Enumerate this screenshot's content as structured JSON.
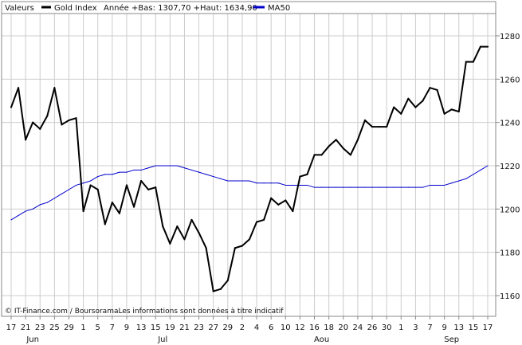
{
  "legend": {
    "values_label": "Valeurs",
    "series_label": "Gold Index",
    "range_text": "Année +Bas: 1307,70 +Haut: 1634,90",
    "ma_label": "MA50",
    "series_color": "#000000",
    "ma_color": "#0000cc"
  },
  "footer": {
    "copyright": "© IT-Finance.com / BoursoramaLes informations sont données à titre indicatif"
  },
  "chart_data": {
    "type": "line",
    "ylim": [
      1150,
      1300
    ],
    "yticks": [
      1160,
      1180,
      1200,
      1220,
      1240,
      1260,
      1280
    ],
    "y_axis_side": "right",
    "grid": true,
    "legend_position": "top-left",
    "x_tick_labels": [
      "17",
      "21",
      "23",
      "25",
      "29",
      "1",
      "5",
      "7",
      "9",
      "13",
      "15",
      "19",
      "21",
      "23",
      "27",
      "29",
      "2",
      "4",
      "6",
      "10",
      "12",
      "16",
      "18",
      "20",
      "24",
      "26",
      "30",
      "1",
      "3",
      "7",
      "9",
      "13",
      "15",
      "17"
    ],
    "month_labels": [
      {
        "label": "Jun",
        "after_tick": 1.5
      },
      {
        "label": "Jul",
        "after_tick": 10.5
      },
      {
        "label": "Aou",
        "after_tick": 21.5
      },
      {
        "label": "Sep",
        "after_tick": 30.5
      }
    ],
    "series": [
      {
        "name": "Gold Index",
        "color": "#000000",
        "values": [
          1247,
          1256,
          1232,
          1240,
          1237,
          1243,
          1256,
          1239,
          1241,
          1242,
          1199,
          1211,
          1209,
          1193,
          1203,
          1198,
          1211,
          1201,
          1213,
          1209,
          1210,
          1192,
          1184,
          1192,
          1186,
          1195,
          1189,
          1182,
          1162,
          1163,
          1167,
          1182,
          1183,
          1186,
          1194,
          1195,
          1205,
          1202,
          1204,
          1199,
          1215,
          1216,
          1225,
          1225,
          1229,
          1232,
          1228,
          1225,
          1232,
          1241,
          1238,
          1238,
          1238,
          1247,
          1244,
          1251,
          1247,
          1250,
          1256,
          1255,
          1244,
          1246,
          1245,
          1268,
          1268,
          1275,
          1275
        ]
      },
      {
        "name": "MA50",
        "color": "#0000cc",
        "values": [
          1195,
          1197,
          1199,
          1200,
          1202,
          1203,
          1205,
          1207,
          1209,
          1211,
          1212,
          1213,
          1215,
          1216,
          1216,
          1217,
          1217,
          1218,
          1218,
          1219,
          1220,
          1220,
          1220,
          1220,
          1219,
          1218,
          1217,
          1216,
          1215,
          1214,
          1213,
          1213,
          1213,
          1213,
          1212,
          1212,
          1212,
          1212,
          1211,
          1211,
          1211,
          1211,
          1210,
          1210,
          1210,
          1210,
          1210,
          1210,
          1210,
          1210,
          1210,
          1210,
          1210,
          1210,
          1210,
          1210,
          1210,
          1210,
          1211,
          1211,
          1211,
          1212,
          1213,
          1214,
          1216,
          1218,
          1220
        ]
      }
    ]
  }
}
